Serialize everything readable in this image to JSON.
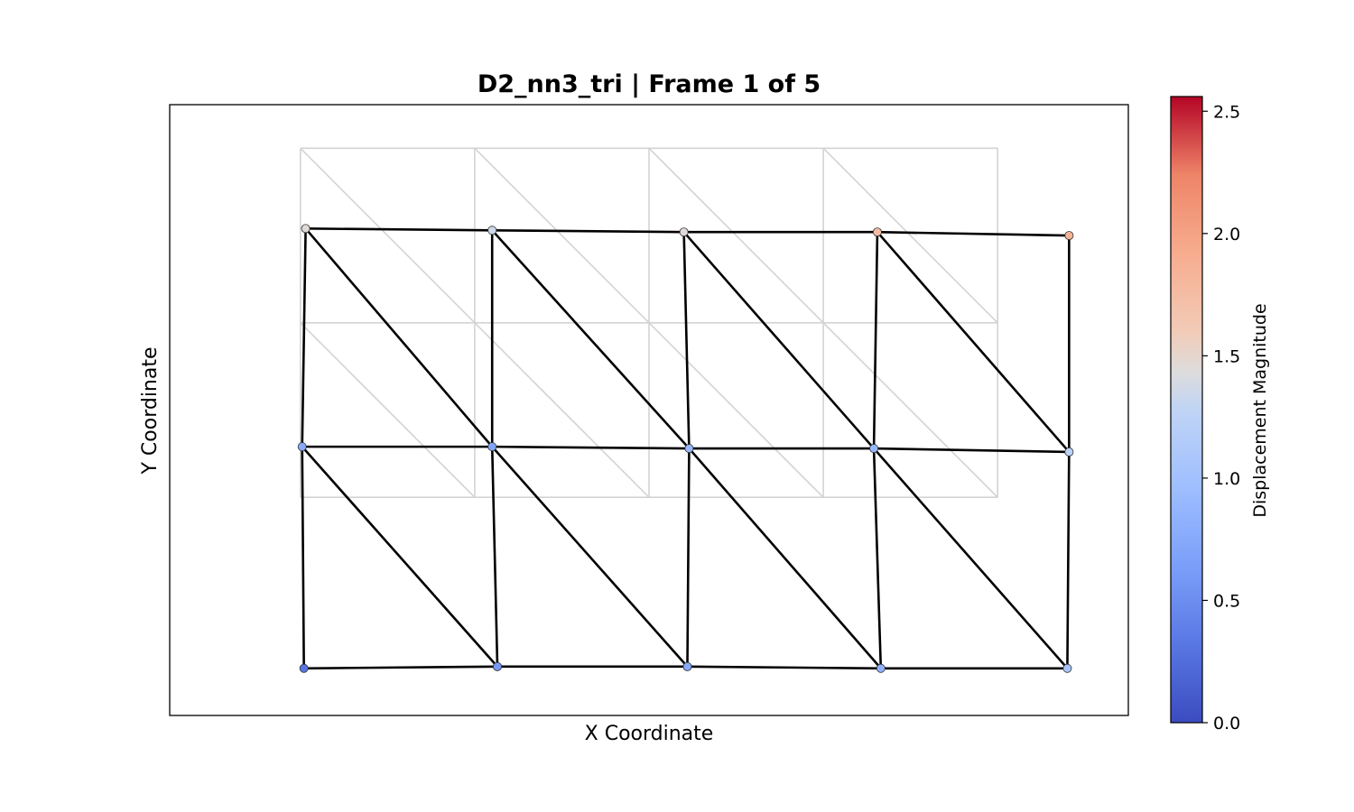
{
  "chart_data": {
    "type": "scatter",
    "title": "D2_nn3_tri  |  Frame 1 of 5",
    "xlabel": "X Coordinate",
    "ylabel": "Y Coordinate",
    "xlim": [
      -0.75,
      4.75
    ],
    "ylim": [
      -1.25,
      2.25
    ],
    "grid": false,
    "reference_mesh": {
      "nodes": [
        [
          0,
          0
        ],
        [
          1,
          0
        ],
        [
          2,
          0
        ],
        [
          3,
          0
        ],
        [
          4,
          0
        ],
        [
          0,
          1
        ],
        [
          1,
          1
        ],
        [
          2,
          1
        ],
        [
          3,
          1
        ],
        [
          4,
          1
        ],
        [
          0,
          2
        ],
        [
          1,
          2
        ],
        [
          2,
          2
        ],
        [
          3,
          2
        ],
        [
          4,
          2
        ]
      ],
      "edges": [
        [
          0,
          1
        ],
        [
          1,
          2
        ],
        [
          2,
          3
        ],
        [
          3,
          4
        ],
        [
          5,
          6
        ],
        [
          6,
          7
        ],
        [
          7,
          8
        ],
        [
          8,
          9
        ],
        [
          10,
          11
        ],
        [
          11,
          12
        ],
        [
          12,
          13
        ],
        [
          13,
          14
        ],
        [
          0,
          5
        ],
        [
          5,
          10
        ],
        [
          1,
          6
        ],
        [
          6,
          11
        ],
        [
          2,
          7
        ],
        [
          7,
          12
        ],
        [
          3,
          8
        ],
        [
          8,
          13
        ],
        [
          4,
          9
        ],
        [
          9,
          14
        ],
        [
          5,
          1
        ],
        [
          6,
          2
        ],
        [
          7,
          3
        ],
        [
          8,
          4
        ],
        [
          10,
          6
        ],
        [
          11,
          7
        ],
        [
          12,
          8
        ],
        [
          13,
          9
        ]
      ],
      "color": "#d3d3d3"
    },
    "deformed_mesh": {
      "nodes": [
        {
          "x": 0.02,
          "y": -0.98,
          "displacement": 0.3
        },
        {
          "x": 1.13,
          "y": -0.97,
          "displacement": 0.6
        },
        {
          "x": 2.22,
          "y": -0.97,
          "displacement": 0.75
        },
        {
          "x": 3.33,
          "y": -0.98,
          "displacement": 0.82
        },
        {
          "x": 4.4,
          "y": -0.98,
          "displacement": 1.05
        },
        {
          "x": 0.01,
          "y": 0.29,
          "displacement": 0.75
        },
        {
          "x": 1.1,
          "y": 0.29,
          "displacement": 0.7
        },
        {
          "x": 2.23,
          "y": 0.28,
          "displacement": 0.9
        },
        {
          "x": 3.29,
          "y": 0.28,
          "displacement": 0.9
        },
        {
          "x": 4.41,
          "y": 0.26,
          "displacement": 1.25
        },
        {
          "x": 0.03,
          "y": 1.54,
          "displacement": 1.45
        },
        {
          "x": 1.1,
          "y": 1.53,
          "displacement": 1.35
        },
        {
          "x": 2.2,
          "y": 1.52,
          "displacement": 1.45
        },
        {
          "x": 3.31,
          "y": 1.52,
          "displacement": 1.75
        },
        {
          "x": 4.41,
          "y": 1.5,
          "displacement": 1.85
        }
      ],
      "edges": [
        [
          0,
          1
        ],
        [
          1,
          2
        ],
        [
          2,
          3
        ],
        [
          3,
          4
        ],
        [
          5,
          6
        ],
        [
          6,
          7
        ],
        [
          7,
          8
        ],
        [
          8,
          9
        ],
        [
          10,
          11
        ],
        [
          11,
          12
        ],
        [
          12,
          13
        ],
        [
          13,
          14
        ],
        [
          0,
          5
        ],
        [
          5,
          10
        ],
        [
          1,
          6
        ],
        [
          6,
          11
        ],
        [
          2,
          7
        ],
        [
          7,
          12
        ],
        [
          3,
          8
        ],
        [
          8,
          13
        ],
        [
          4,
          9
        ],
        [
          9,
          14
        ],
        [
          5,
          1
        ],
        [
          6,
          2
        ],
        [
          7,
          3
        ],
        [
          8,
          4
        ],
        [
          10,
          6
        ],
        [
          11,
          7
        ],
        [
          12,
          8
        ],
        [
          13,
          9
        ]
      ],
      "color": "#000000"
    },
    "colorbar": {
      "label": "Displacement Magnitude",
      "colormap": "coolwarm",
      "range": [
        0.0,
        2.56
      ],
      "ticks": [
        0.0,
        0.5,
        1.0,
        1.5,
        2.0,
        2.5
      ],
      "tick_labels": [
        "0.0",
        "0.5",
        "1.0",
        "1.5",
        "2.0",
        "2.5"
      ]
    }
  }
}
